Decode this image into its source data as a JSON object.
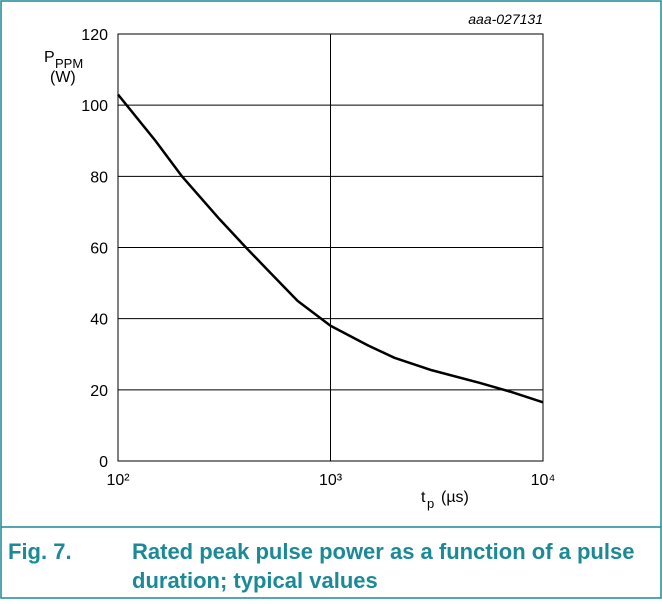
{
  "chart_data": {
    "type": "line",
    "annotation": "aaa-027131",
    "y_label": {
      "symbol": "P",
      "subscript": "PPM",
      "unit": "(W)"
    },
    "x_label": {
      "symbol": "t",
      "subscript": "p",
      "unit": "(µs)"
    },
    "xscale": "log",
    "xlim": [
      100,
      10000
    ],
    "xticks": [
      {
        "value": 100,
        "label": "10²"
      },
      {
        "value": 1000,
        "label": "10³"
      },
      {
        "value": 10000,
        "label": "10⁴"
      }
    ],
    "ylim": [
      0,
      120
    ],
    "yticks": [
      0,
      20,
      40,
      60,
      80,
      100,
      120
    ],
    "grid": true,
    "x": [
      100,
      150,
      200,
      300,
      400,
      500,
      700,
      1000,
      1500,
      2000,
      3000,
      5000,
      7000,
      10000
    ],
    "series": [
      {
        "color": "#000000",
        "values": [
          103,
          90,
          80,
          68,
          60,
          54,
          45,
          38,
          32.5,
          29,
          25.5,
          22,
          19.5,
          16.5
        ]
      }
    ],
    "caption": {
      "number": "Fig. 7.",
      "text_line1": "Rated peak pulse power as a function of a pulse",
      "text_line2": "duration; typical values"
    }
  }
}
